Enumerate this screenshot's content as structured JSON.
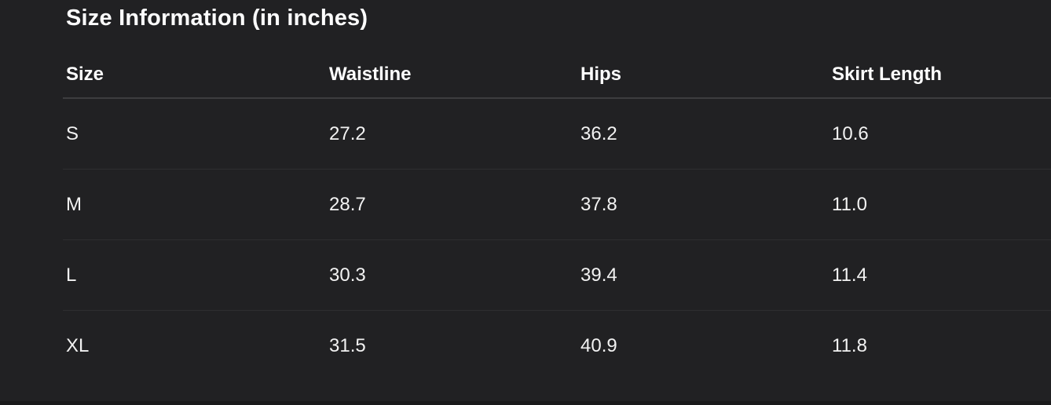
{
  "page": {
    "title": "Size Information (in inches)"
  },
  "colors": {
    "background": "#212123",
    "title_text": "#ffffff",
    "data_text": "#f2f2f2",
    "header_separator": "#3d3d3f",
    "row_separator": "#2e2e30",
    "bottom_strip": "#1a1a1b"
  },
  "table": {
    "columns": [
      "Size",
      "Waistline",
      "Hips",
      "Skirt Length"
    ],
    "rows": [
      {
        "size": "S",
        "waistline": "27.2",
        "hips": "36.2",
        "skirt_length": "10.6"
      },
      {
        "size": "M",
        "waistline": "28.7",
        "hips": "37.8",
        "skirt_length": "11.0"
      },
      {
        "size": "L",
        "waistline": "30.3",
        "hips": "39.4",
        "skirt_length": "11.4"
      },
      {
        "size": "XL",
        "waistline": "31.5",
        "hips": "40.9",
        "skirt_length": "11.8"
      }
    ]
  }
}
